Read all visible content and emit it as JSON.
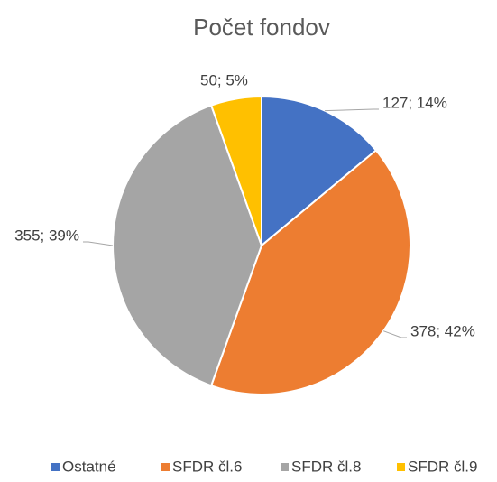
{
  "chart_data": {
    "type": "pie",
    "title": "Počet fondov",
    "categories": [
      "Ostatné",
      "SFDR čl.6",
      "SFDR čl.8",
      "SFDR čl.9"
    ],
    "values": [
      127,
      378,
      355,
      50
    ],
    "value_labels": [
      "127; 14%",
      "378; 42%",
      "355; 39%",
      "50; 5%"
    ],
    "colors": [
      "#4472c4",
      "#ed7d31",
      "#a5a5a5",
      "#ffc000"
    ],
    "legend": "bottom"
  }
}
